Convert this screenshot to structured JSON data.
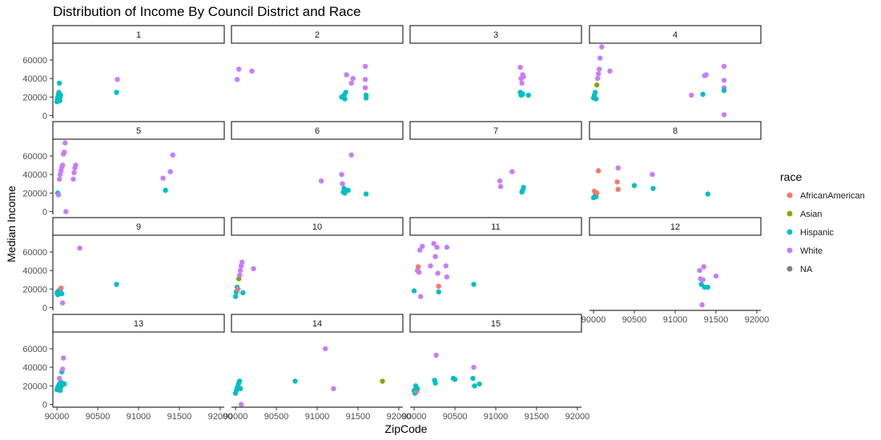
{
  "chart_data": {
    "type": "scatter",
    "title": "Distribution of Income By Council District and Race",
    "xlabel": "ZipCode",
    "ylabel": "Median Income",
    "xlim": [
      89950,
      92050
    ],
    "ylim": [
      -3000,
      78000
    ],
    "x_ticks": [
      "90000",
      "90500",
      "91000",
      "91500",
      "92000"
    ],
    "y_ticks": [
      "0",
      "20000",
      "40000",
      "60000"
    ],
    "legend": {
      "title": "race",
      "position": "right",
      "entries": [
        {
          "name": "AfricanAmerican",
          "color": "#F8766D"
        },
        {
          "name": "Asian",
          "color": "#7CAE00"
        },
        {
          "name": "Hispanic",
          "color": "#00BFC4"
        },
        {
          "name": "White",
          "color": "#C77CFF"
        },
        {
          "name": "NA",
          "color": "#7F7F7F"
        }
      ]
    },
    "facet_layout": {
      "ncol": 4,
      "nrow": 4
    },
    "facets": [
      {
        "label": "1",
        "points": [
          [
            90000,
            15000,
            "Hispanic"
          ],
          [
            90005,
            17000,
            "Hispanic"
          ],
          [
            90010,
            19000,
            "Hispanic"
          ],
          [
            90015,
            21000,
            "Hispanic"
          ],
          [
            90020,
            23000,
            "Hispanic"
          ],
          [
            90025,
            25000,
            "Hispanic"
          ],
          [
            90030,
            35000,
            "Hispanic"
          ],
          [
            90035,
            16000,
            "Hispanic"
          ],
          [
            90040,
            20000,
            "Hispanic"
          ],
          [
            90045,
            22000,
            "Hispanic"
          ],
          [
            90730,
            25000,
            "Hispanic"
          ],
          [
            90740,
            39000,
            "White"
          ]
        ]
      },
      {
        "label": "2",
        "points": [
          [
            90020,
            39000,
            "White"
          ],
          [
            90040,
            50000,
            "White"
          ],
          [
            90200,
            48000,
            "White"
          ],
          [
            91300,
            20000,
            "Hispanic"
          ],
          [
            91330,
            22000,
            "Hispanic"
          ],
          [
            91340,
            18000,
            "Hispanic"
          ],
          [
            91350,
            25000,
            "Hispanic"
          ],
          [
            91360,
            44000,
            "White"
          ],
          [
            91420,
            35000,
            "White"
          ],
          [
            91440,
            40000,
            "White"
          ],
          [
            91590,
            53000,
            "White"
          ],
          [
            91590,
            39000,
            "White"
          ],
          [
            91590,
            30000,
            "White"
          ],
          [
            91600,
            22000,
            "Hispanic"
          ],
          [
            91600,
            19000,
            "Hispanic"
          ]
        ]
      },
      {
        "label": "3",
        "points": [
          [
            91300,
            52000,
            "White"
          ],
          [
            91310,
            40000,
            "White"
          ],
          [
            91320,
            35000,
            "White"
          ],
          [
            91330,
            44000,
            "White"
          ],
          [
            91340,
            42000,
            "White"
          ],
          [
            91300,
            25000,
            "Hispanic"
          ],
          [
            91310,
            22000,
            "Hispanic"
          ],
          [
            91320,
            24000,
            "Hispanic"
          ],
          [
            91330,
            23000,
            "Hispanic"
          ],
          [
            91400,
            22000,
            "Hispanic"
          ]
        ]
      },
      {
        "label": "4",
        "points": [
          [
            90000,
            19000,
            "Hispanic"
          ],
          [
            90010,
            22000,
            "Hispanic"
          ],
          [
            90020,
            25000,
            "Hispanic"
          ],
          [
            90030,
            18000,
            "Hispanic"
          ],
          [
            90040,
            33000,
            "Asian"
          ],
          [
            90050,
            40000,
            "White"
          ],
          [
            90060,
            45000,
            "White"
          ],
          [
            90070,
            50000,
            "White"
          ],
          [
            90080,
            62000,
            "White"
          ],
          [
            90100,
            74000,
            "White"
          ],
          [
            90200,
            48000,
            "White"
          ],
          [
            91200,
            22000,
            "White"
          ],
          [
            91340,
            23000,
            "Hispanic"
          ],
          [
            91360,
            43000,
            "White"
          ],
          [
            91380,
            44000,
            "White"
          ],
          [
            91600,
            53000,
            "White"
          ],
          [
            91600,
            38000,
            "White"
          ],
          [
            91600,
            30000,
            "White"
          ],
          [
            91600,
            27000,
            "Hispanic"
          ],
          [
            91600,
            1000,
            "White"
          ]
        ]
      },
      {
        "label": "5",
        "points": [
          [
            90010,
            20000,
            "Hispanic"
          ],
          [
            90020,
            18000,
            "White"
          ],
          [
            90030,
            35000,
            "White"
          ],
          [
            90040,
            40000,
            "White"
          ],
          [
            90050,
            44000,
            "White"
          ],
          [
            90060,
            48000,
            "White"
          ],
          [
            90070,
            50000,
            "White"
          ],
          [
            90080,
            62000,
            "White"
          ],
          [
            90090,
            64000,
            "White"
          ],
          [
            90100,
            74000,
            "White"
          ],
          [
            90110,
            0,
            "White"
          ],
          [
            90200,
            35000,
            "White"
          ],
          [
            90210,
            42000,
            "White"
          ],
          [
            90220,
            47000,
            "White"
          ],
          [
            90230,
            50000,
            "White"
          ],
          [
            91300,
            36000,
            "White"
          ],
          [
            91330,
            23000,
            "Hispanic"
          ],
          [
            91390,
            43000,
            "White"
          ],
          [
            91420,
            61000,
            "White"
          ]
        ]
      },
      {
        "label": "6",
        "points": [
          [
            91050,
            33000,
            "White"
          ],
          [
            91300,
            40000,
            "White"
          ],
          [
            91310,
            30000,
            "White"
          ],
          [
            91320,
            21000,
            "Hispanic"
          ],
          [
            91330,
            25000,
            "Hispanic"
          ],
          [
            91340,
            20000,
            "Hispanic"
          ],
          [
            91350,
            23000,
            "Hispanic"
          ],
          [
            91380,
            23000,
            "Hispanic"
          ],
          [
            91420,
            61000,
            "White"
          ],
          [
            91600,
            19000,
            "Hispanic"
          ]
        ]
      },
      {
        "label": "7",
        "points": [
          [
            91050,
            33000,
            "White"
          ],
          [
            91060,
            27000,
            "White"
          ],
          [
            91200,
            43000,
            "White"
          ],
          [
            91320,
            21000,
            "Hispanic"
          ],
          [
            91330,
            23000,
            "Hispanic"
          ],
          [
            91340,
            26000,
            "Hispanic"
          ]
        ]
      },
      {
        "label": "8",
        "points": [
          [
            90000,
            15000,
            "Hispanic"
          ],
          [
            90010,
            22000,
            "AfricanAmerican"
          ],
          [
            90020,
            17000,
            "Hispanic"
          ],
          [
            90030,
            16000,
            "Hispanic"
          ],
          [
            90040,
            20000,
            "AfricanAmerican"
          ],
          [
            90060,
            44000,
            "AfricanAmerican"
          ],
          [
            90290,
            32000,
            "AfricanAmerican"
          ],
          [
            90300,
            24000,
            "AfricanAmerican"
          ],
          [
            90300,
            47000,
            "White"
          ],
          [
            90500,
            28000,
            "Hispanic"
          ],
          [
            90720,
            40000,
            "White"
          ],
          [
            90730,
            25000,
            "Hispanic"
          ],
          [
            91400,
            19000,
            "Hispanic"
          ]
        ]
      },
      {
        "label": "9",
        "points": [
          [
            90000,
            16000,
            "Hispanic"
          ],
          [
            90010,
            14000,
            "Hispanic"
          ],
          [
            90020,
            18000,
            "Hispanic"
          ],
          [
            90030,
            15000,
            "Hispanic"
          ],
          [
            90040,
            17000,
            "Hispanic"
          ],
          [
            90050,
            21000,
            "AfricanAmerican"
          ],
          [
            90060,
            15000,
            "Hispanic"
          ],
          [
            90070,
            5000,
            "White"
          ],
          [
            90280,
            64000,
            "White"
          ],
          [
            90730,
            25000,
            "Hispanic"
          ]
        ]
      },
      {
        "label": "10",
        "points": [
          [
            90000,
            12000,
            "Hispanic"
          ],
          [
            90010,
            17000,
            "Hispanic"
          ],
          [
            90020,
            22000,
            "Hispanic"
          ],
          [
            90030,
            20000,
            "AfricanAmerican"
          ],
          [
            90040,
            31000,
            "Asian"
          ],
          [
            90050,
            35000,
            "White"
          ],
          [
            90060,
            40000,
            "White"
          ],
          [
            90070,
            45000,
            "White"
          ],
          [
            90080,
            49000,
            "White"
          ],
          [
            90090,
            16000,
            "Hispanic"
          ],
          [
            90220,
            42000,
            "White"
          ]
        ]
      },
      {
        "label": "11",
        "points": [
          [
            90000,
            18000,
            "Hispanic"
          ],
          [
            90040,
            40000,
            "White"
          ],
          [
            90050,
            44000,
            "AfricanAmerican"
          ],
          [
            90060,
            38000,
            "White"
          ],
          [
            90070,
            62000,
            "White"
          ],
          [
            90080,
            12000,
            "White"
          ],
          [
            90100,
            66000,
            "White"
          ],
          [
            90200,
            45000,
            "White"
          ],
          [
            90240,
            69000,
            "White"
          ],
          [
            90260,
            55000,
            "White"
          ],
          [
            90280,
            65000,
            "White"
          ],
          [
            90290,
            37000,
            "White"
          ],
          [
            90300,
            17000,
            "Hispanic"
          ],
          [
            90300,
            23000,
            "AfricanAmerican"
          ],
          [
            90390,
            45000,
            "White"
          ],
          [
            90400,
            33000,
            "White"
          ],
          [
            90400,
            65000,
            "White"
          ],
          [
            90730,
            25000,
            "Hispanic"
          ]
        ]
      },
      {
        "label": "12",
        "points": [
          [
            91300,
            40000,
            "White"
          ],
          [
            91310,
            31000,
            "White"
          ],
          [
            91320,
            25000,
            "Hispanic"
          ],
          [
            91330,
            3000,
            "White"
          ],
          [
            91340,
            30000,
            "White"
          ],
          [
            91350,
            44000,
            "White"
          ],
          [
            91360,
            22000,
            "Hispanic"
          ],
          [
            91400,
            22000,
            "Hispanic"
          ],
          [
            91500,
            34000,
            "White"
          ]
        ]
      },
      {
        "label": "13",
        "points": [
          [
            90000,
            16000,
            "Hispanic"
          ],
          [
            90010,
            18000,
            "Hispanic"
          ],
          [
            90020,
            20000,
            "Hispanic"
          ],
          [
            90030,
            22000,
            "Hispanic"
          ],
          [
            90040,
            15000,
            "Hispanic"
          ],
          [
            90050,
            24000,
            "Hispanic"
          ],
          [
            90060,
            35000,
            "Hispanic"
          ],
          [
            90070,
            38000,
            "White"
          ],
          [
            90080,
            50000,
            "White"
          ],
          [
            90030,
            28000,
            "White"
          ],
          [
            90020,
            17000,
            "Hispanic"
          ],
          [
            90050,
            19000,
            "Hispanic"
          ],
          [
            90090,
            22000,
            "Hispanic"
          ]
        ]
      },
      {
        "label": "14",
        "points": [
          [
            90000,
            12000,
            "Hispanic"
          ],
          [
            90010,
            15000,
            "Hispanic"
          ],
          [
            90020,
            18000,
            "Hispanic"
          ],
          [
            90030,
            20000,
            "Hispanic"
          ],
          [
            90040,
            23000,
            "Hispanic"
          ],
          [
            90050,
            25000,
            "Hispanic"
          ],
          [
            90060,
            17000,
            "Hispanic"
          ],
          [
            90070,
            0,
            "White"
          ],
          [
            90730,
            25000,
            "Hispanic"
          ],
          [
            91100,
            60000,
            "White"
          ],
          [
            91200,
            17000,
            "White"
          ],
          [
            91800,
            25000,
            "Asian"
          ]
        ]
      },
      {
        "label": "15",
        "points": [
          [
            90000,
            15000,
            "Hispanic"
          ],
          [
            90010,
            12000,
            "Hispanic"
          ],
          [
            90020,
            20000,
            "Hispanic"
          ],
          [
            90030,
            14000,
            "AfricanAmerican"
          ],
          [
            90040,
            17000,
            "Hispanic"
          ],
          [
            90250,
            26000,
            "Hispanic"
          ],
          [
            90260,
            23000,
            "Hispanic"
          ],
          [
            90270,
            53000,
            "White"
          ],
          [
            90480,
            28000,
            "Hispanic"
          ],
          [
            90500,
            27000,
            "Hispanic"
          ],
          [
            90720,
            28000,
            "Hispanic"
          ],
          [
            90730,
            40000,
            "White"
          ],
          [
            90740,
            20000,
            "Hispanic"
          ],
          [
            90800,
            22000,
            "Hispanic"
          ]
        ]
      }
    ]
  }
}
